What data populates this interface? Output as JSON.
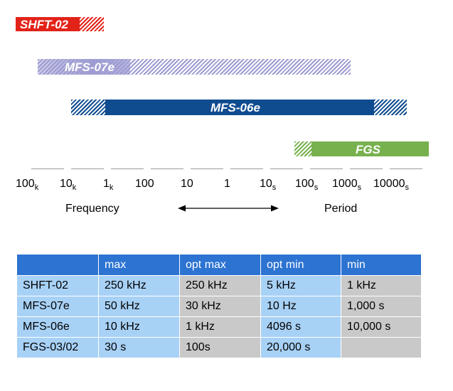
{
  "bars": {
    "shft": "SHFT-02",
    "mfs07": "MFS-07e",
    "mfs06": "MFS-06e",
    "fgs": "FGS"
  },
  "scale": {
    "ticks": [
      {
        "main": "100",
        "sub": "k"
      },
      {
        "main": "10",
        "sub": "k"
      },
      {
        "main": "1",
        "sub": "k"
      },
      {
        "main": "100",
        "sub": ""
      },
      {
        "main": "10",
        "sub": ""
      },
      {
        "main": "1",
        "sub": ""
      },
      {
        "main": "10",
        "sub": "s"
      },
      {
        "main": "100",
        "sub": "s"
      },
      {
        "main": "1000",
        "sub": "s"
      },
      {
        "main": "10000",
        "sub": "s"
      }
    ],
    "frequency_label": "Frequency",
    "period_label": "Period"
  },
  "table": {
    "headers": [
      "",
      "max",
      "opt max",
      "opt min",
      "min"
    ],
    "rows": [
      [
        "SHFT-02",
        "250 kHz",
        "250 kHz",
        "5 kHz",
        "1 kHz"
      ],
      [
        "MFS-07e",
        "50 kHz",
        "30 kHz",
        "10 Hz",
        "1,000 s"
      ],
      [
        "MFS-06e",
        "10 kHz",
        "1 kHz",
        "4096 s",
        "10,000 s"
      ],
      [
        "FGS-03/02",
        "30 s",
        "100s",
        "20,000 s",
        ""
      ]
    ]
  },
  "colors": {
    "shft": "#e2231a",
    "mfs07": "#9d9bd2",
    "mfs06": "#0f4c8f",
    "fgs": "#77b14e",
    "table_header": "#2c73d2",
    "table_light": "#a8d1f6",
    "table_gray": "#c9c9c9"
  }
}
